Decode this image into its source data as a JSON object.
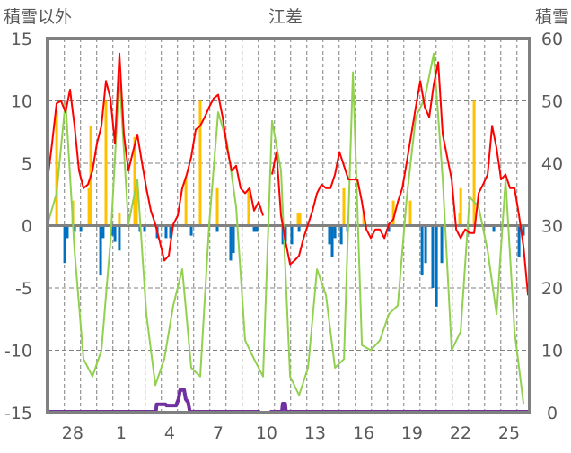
{
  "chart_data": {
    "type": "line",
    "title": "江差",
    "ylabel_left": "積雪以外",
    "ylabel_right": "積雪",
    "ylim_left": [
      -15,
      15
    ],
    "ylim_right": [
      0,
      60
    ],
    "yticks_left": [
      "15",
      "10",
      "5",
      "0",
      "-5",
      "-10",
      "-15"
    ],
    "yticks_right": [
      "60",
      "50",
      "40",
      "30",
      "20",
      "10",
      "0"
    ],
    "x_unit": "days from left edge of plot",
    "xlim": [
      0,
      29.83
    ],
    "xtick_labels": [
      "28",
      "1",
      "4",
      "7",
      "10",
      "13",
      "16",
      "19",
      "22",
      "25"
    ],
    "xtick_positions": [
      1.55,
      4.55,
      7.55,
      10.55,
      13.55,
      16.55,
      19.55,
      22.55,
      25.55,
      28.55
    ],
    "day_gridline_start": 1.04,
    "grid": "horizontal every 5 units, vertical dashed every day",
    "colors": {
      "red": "#ff0000",
      "green": "#92d050",
      "orange": "#ffc000",
      "blue": "#0070c0",
      "purple": "#7030a0",
      "axis": "#808080"
    },
    "series": [
      {
        "name": "red",
        "axis": "left",
        "x_start": 0,
        "x_step": 0.2778,
        "values": [
          3.7,
          6.6,
          9.8,
          10.0,
          9.1,
          10.9,
          8.0,
          4.4,
          3.0,
          3.3,
          4.4,
          6.6,
          8.0,
          11.6,
          10.2,
          6.6,
          13.8,
          7.3,
          4.4,
          5.9,
          7.3,
          5.1,
          3.0,
          1.2,
          0.1,
          -1.3,
          -2.8,
          -2.4,
          0.1,
          0.8,
          3.0,
          4.1,
          5.5,
          7.7,
          8.0,
          8.7,
          9.5,
          10.2,
          10.5,
          8.7,
          6.2,
          4.4,
          4.8,
          3.0,
          2.6,
          3.0,
          1.2,
          1.9,
          0.8,
          null,
          4.1,
          5.9,
          0.8,
          -1.3,
          -3.1,
          -2.8,
          -2.4,
          -1.0,
          0.1,
          1.2,
          2.6,
          3.3,
          3.0,
          3.0,
          4.1,
          5.9,
          4.8,
          3.7,
          3.7,
          3.7,
          1.9,
          -0.3,
          -1.0,
          -0.3,
          -0.3,
          -1.0,
          0.1,
          0.5,
          1.9,
          3.0,
          5.1,
          7.3,
          9.5,
          11.6,
          9.5,
          8.7,
          11.3,
          13.1,
          7.3,
          5.5,
          3.7,
          -0.3,
          -1.0,
          -0.3,
          -0.6,
          -0.6,
          2.6,
          3.3,
          4.1,
          8.0,
          6.2,
          3.7,
          4.1,
          3.0,
          3.0,
          0.8,
          -1.7,
          -5.6
        ]
      },
      {
        "name": "green",
        "axis": "left",
        "x_start": 0,
        "x_step": 0.5556,
        "values": [
          0.1,
          2.6,
          10.0,
          -2.0,
          -10.7,
          -12.1,
          -10.0,
          -1.3,
          12.0,
          0.1,
          3.7,
          -7.1,
          -12.8,
          -10.7,
          -6.4,
          -3.5,
          -11.4,
          -12.1,
          0.1,
          9.1,
          6.6,
          1.5,
          -9.2,
          -10.7,
          -12.1,
          8.4,
          4.4,
          -12.1,
          -13.6,
          -11.4,
          -3.5,
          -5.6,
          -11.4,
          -10.7,
          12.3,
          -9.6,
          -10.0,
          -9.2,
          -7.1,
          -6.4,
          2.3,
          8.7,
          10.2,
          13.8,
          3.7,
          -10.0,
          -8.5,
          2.3,
          1.5,
          -2.0,
          -7.1,
          3.7,
          -8.5,
          -14.3,
          -10.0
        ]
      },
      {
        "name": "orange",
        "type": "bar",
        "axis": "left",
        "points": [
          [
            0.56,
            9.2
          ],
          [
            1.56,
            2.0
          ],
          [
            2.56,
            3.0
          ],
          [
            2.67,
            8.0
          ],
          [
            3.61,
            10.0
          ],
          [
            4.44,
            1.0
          ],
          [
            5.39,
            7.1
          ],
          [
            5.5,
            3.7
          ],
          [
            8.56,
            3.9
          ],
          [
            9.44,
            10.0
          ],
          [
            10.5,
            3.0
          ],
          [
            12.44,
            3.0
          ],
          [
            15.5,
            1.0
          ],
          [
            15.61,
            1.0
          ],
          [
            18.33,
            3.0
          ],
          [
            19.56,
            1.0
          ],
          [
            21.39,
            2.0
          ],
          [
            22.44,
            2.0
          ],
          [
            25.5,
            1.0
          ],
          [
            25.56,
            3.0
          ],
          [
            26.39,
            10.0
          ]
        ]
      },
      {
        "name": "blue",
        "type": "bar",
        "axis": "left",
        "points": [
          [
            1.06,
            -3.0
          ],
          [
            1.22,
            -1.0
          ],
          [
            1.67,
            -0.5
          ],
          [
            2.06,
            -0.5
          ],
          [
            3.28,
            -4.0
          ],
          [
            3.44,
            -1.0
          ],
          [
            4.0,
            -0.8
          ],
          [
            4.17,
            -1.3
          ],
          [
            4.44,
            -2.0
          ],
          [
            5.72,
            -0.5
          ],
          [
            6.0,
            -0.5
          ],
          [
            6.78,
            -1.0
          ],
          [
            7.33,
            -1.0
          ],
          [
            7.61,
            -1.0
          ],
          [
            8.89,
            -0.8
          ],
          [
            10.5,
            -0.5
          ],
          [
            11.33,
            -2.8
          ],
          [
            11.5,
            -2.2
          ],
          [
            12.78,
            -0.5
          ],
          [
            12.94,
            -0.5
          ],
          [
            14.56,
            -1.5
          ],
          [
            14.72,
            -1.3
          ],
          [
            15.11,
            -1.5
          ],
          [
            15.56,
            -0.5
          ],
          [
            17.44,
            -1.5
          ],
          [
            17.61,
            -2.5
          ],
          [
            17.78,
            -1.0
          ],
          [
            18.17,
            -1.5
          ],
          [
            18.56,
            -0.5
          ],
          [
            21.11,
            -0.5
          ],
          [
            23.17,
            -4.0
          ],
          [
            23.39,
            -3.0
          ],
          [
            23.83,
            -5.0
          ],
          [
            24.06,
            -6.5
          ],
          [
            24.39,
            -3.0
          ],
          [
            27.61,
            -0.5
          ],
          [
            29.17,
            -2.5
          ],
          [
            29.44,
            -0.8
          ]
        ]
      },
      {
        "name": "purple",
        "axis": "right",
        "points": [
          [
            0,
            0
          ],
          [
            6.7,
            0
          ],
          [
            6.75,
            1.2
          ],
          [
            7.3,
            1.2
          ],
          [
            7.35,
            1.0
          ],
          [
            7.95,
            1.0
          ],
          [
            8.1,
            2.0
          ],
          [
            8.2,
            3.5
          ],
          [
            8.45,
            3.5
          ],
          [
            8.55,
            2.0
          ],
          [
            8.7,
            1.5
          ],
          [
            8.8,
            0
          ],
          [
            13.15,
            0
          ],
          null,
          [
            13.75,
            0
          ],
          [
            14.5,
            0
          ],
          [
            14.55,
            1.3
          ],
          [
            14.7,
            1.3
          ],
          [
            14.75,
            0
          ],
          [
            29.83,
            0
          ]
        ]
      }
    ]
  }
}
